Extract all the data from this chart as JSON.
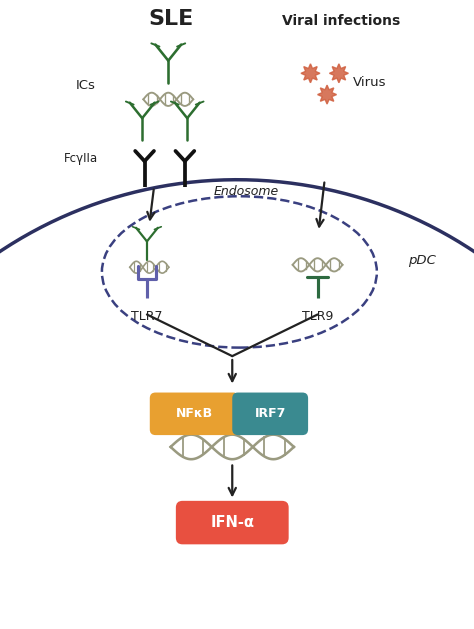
{
  "title": "SLE",
  "viral_infections_label": "Viral infections",
  "virus_label": "Virus",
  "ics_label": "ICs",
  "fcyrIIa_label": "FcγIIa",
  "endosome_label": "Endosome",
  "pdc_label": "pDC",
  "tlr7_label": "TLR7",
  "tlr9_label": "TLR9",
  "nfkb_label": "NFκB",
  "irf7_label": "IRF7",
  "ifn_label": "IFN-α",
  "bg_color": "#ffffff",
  "cell_membrane_color": "#2c3060",
  "endosome_color": "#3a4080",
  "antibody_color": "#2d6e30",
  "dna_color": "#9a9a80",
  "tlr7_color": "#6060aa",
  "tlr9_color": "#2d6a40",
  "nfkb_color": "#e8a030",
  "irf7_color": "#3a8a90",
  "ifn_color": "#e85040",
  "virus_color": "#d06040",
  "arrow_color": "#222222",
  "text_color": "#222222",
  "fig_width": 4.74,
  "fig_height": 6.29,
  "dpi": 100
}
